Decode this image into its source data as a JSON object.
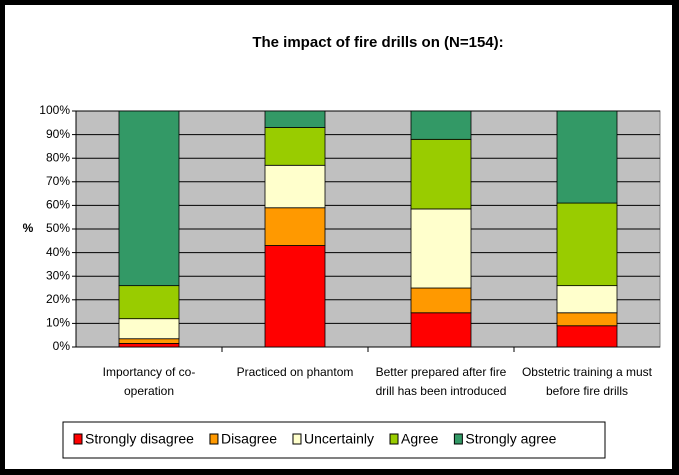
{
  "chart_data": {
    "type": "stacked_bar",
    "title": "The impact of fire drills on (N=154):",
    "ylabel": "%",
    "categories": [
      "Importancy of co-operation",
      "Practiced on phantom",
      "Better prepared after fire drill has been introduced",
      "Obstetric training a must before fire drills"
    ],
    "series": [
      {
        "name": "Strongly disagree",
        "color": "#ff0000",
        "values": [
          1.5,
          43,
          14.5,
          9
        ]
      },
      {
        "name": "Disagree",
        "color": "#ff9900",
        "values": [
          2,
          16,
          10.5,
          5.5
        ]
      },
      {
        "name": "Uncertainly",
        "color": "#ffffcc",
        "values": [
          8.5,
          18,
          33.5,
          11.5
        ]
      },
      {
        "name": "Agree",
        "color": "#99cc00",
        "values": [
          14,
          16,
          29.5,
          35
        ]
      },
      {
        "name": "Strongly agree",
        "color": "#339966",
        "values": [
          74,
          7,
          12,
          39
        ]
      }
    ],
    "ylim": [
      0,
      100
    ],
    "yticks": [
      {
        "value": 0,
        "label": "0%"
      },
      {
        "value": 10,
        "label": "10%"
      },
      {
        "value": 20,
        "label": "20%"
      },
      {
        "value": 30,
        "label": "30%"
      },
      {
        "value": 40,
        "label": "40%"
      },
      {
        "value": 50,
        "label": "50%"
      },
      {
        "value": 60,
        "label": "60%"
      },
      {
        "value": 70,
        "label": "70%"
      },
      {
        "value": 80,
        "label": "80%"
      },
      {
        "value": 90,
        "label": "90%"
      },
      {
        "value": 100,
        "label": "100%"
      }
    ],
    "grid": true,
    "plot_background": "#c0c0c0",
    "legend": "bottom"
  }
}
